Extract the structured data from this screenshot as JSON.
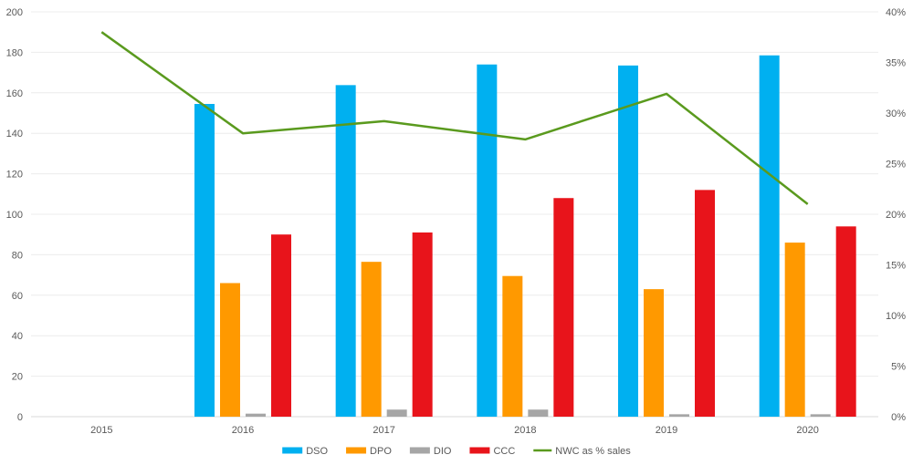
{
  "chart_data": {
    "type": "bar",
    "categories": [
      "2015",
      "2016",
      "2017",
      "2018",
      "2019",
      "2020"
    ],
    "series": [
      {
        "name": "DSO",
        "type": "bar",
        "axis": "left",
        "color": "#00B0F0",
        "values": [
          null,
          154.5,
          163.8,
          174.0,
          173.5,
          178.5
        ]
      },
      {
        "name": "DPO",
        "type": "bar",
        "axis": "left",
        "color": "#FF9900",
        "values": [
          null,
          66.0,
          76.5,
          69.5,
          63.0,
          86.0
        ]
      },
      {
        "name": "DIO",
        "type": "bar",
        "axis": "left",
        "color": "#A6A6A6",
        "values": [
          null,
          1.5,
          3.5,
          3.5,
          1.2,
          1.2
        ]
      },
      {
        "name": "CCC",
        "type": "bar",
        "axis": "left",
        "color": "#E8141B",
        "values": [
          null,
          90.0,
          91.0,
          108.0,
          112.0,
          94.0
        ]
      },
      {
        "name": "NWC as % sales",
        "type": "line",
        "axis": "right",
        "color": "#5A9A1E",
        "values": [
          0.38,
          0.28,
          0.292,
          0.274,
          0.319,
          0.21
        ]
      }
    ],
    "y_left": {
      "min": 0,
      "max": 200,
      "step": 20,
      "ticks": [
        "0",
        "20",
        "40",
        "60",
        "80",
        "100",
        "120",
        "140",
        "160",
        "180",
        "200"
      ]
    },
    "y_right": {
      "min": 0,
      "max": 0.4,
      "step": 0.05,
      "ticks": [
        "0%",
        "5%",
        "10%",
        "15%",
        "20%",
        "25%",
        "30%",
        "35%",
        "40%"
      ]
    },
    "grid": true,
    "legend": {
      "position": "bottom",
      "labels": [
        "DSO",
        "DPO",
        "DIO",
        "CCC",
        "NWC as % sales"
      ]
    }
  }
}
